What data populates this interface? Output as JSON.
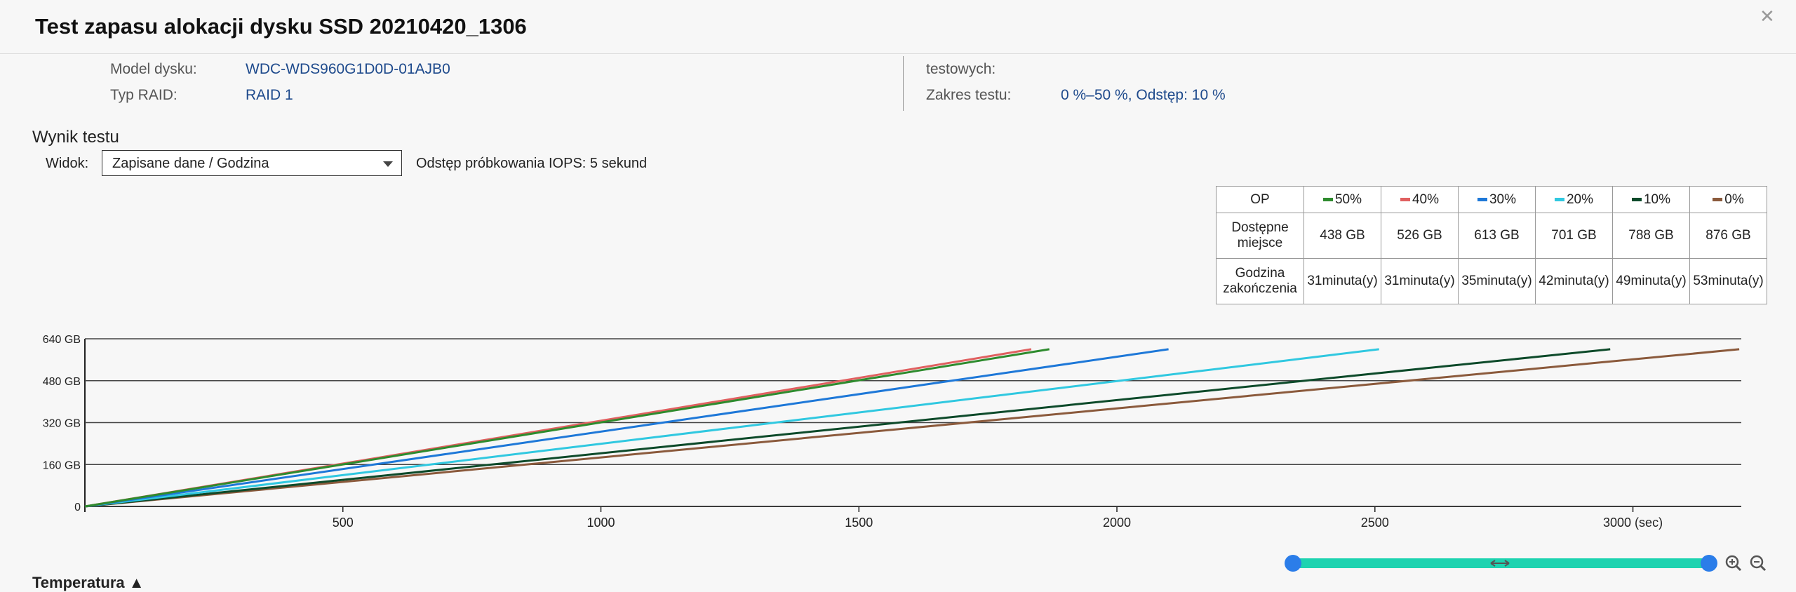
{
  "header": {
    "title": "Test zapasu alokacji dysku SSD 20210420_1306"
  },
  "info": {
    "left": [
      {
        "label": "Model dysku:",
        "value": "WDC-WDS960G1D0D-01AJB0"
      },
      {
        "label": "Typ RAID:",
        "value": "RAID 1"
      }
    ],
    "right": [
      {
        "label": "testowych:"
      },
      {
        "label": "Zakres testu:",
        "value": "0 %–50 %, Odstęp: 10 %"
      }
    ]
  },
  "result": {
    "title": "Wynik testu",
    "view_label": "Widok:",
    "view_value": "Zapisane dane / Godzina",
    "sampling": "Odstęp próbkowania IOPS: 5 sekund"
  },
  "summary_table": {
    "corner": "OP",
    "rows": [
      {
        "label": "Dostępne miejsce",
        "cells": [
          "438 GB",
          "526 GB",
          "613 GB",
          "701 GB",
          "788 GB",
          "876 GB"
        ]
      },
      {
        "label": "Godzina zakończenia",
        "cells": [
          "31minuta(y)",
          "31minuta(y)",
          "35minuta(y)",
          "42minuta(y)",
          "49minuta(y)",
          "53minuta(y)"
        ]
      }
    ]
  },
  "chart_data": {
    "type": "line",
    "xlim": [
      0,
      3210
    ],
    "ylim": [
      0,
      640
    ],
    "xticks": [
      500,
      1000,
      1500,
      2000,
      2500,
      {
        "value": 3000,
        "label": "3000 (sec)"
      }
    ],
    "yticks": [
      0,
      {
        "value": 160,
        "label": "160 GB"
      },
      {
        "value": 320,
        "label": "320 GB"
      },
      {
        "value": 480,
        "label": "480 GB"
      },
      {
        "value": 640,
        "label": "640 GB"
      }
    ],
    "grid": true,
    "series": [
      {
        "name": "50%",
        "color": "#2e8b2e",
        "x": [
          0,
          935,
          1869
        ],
        "values": [
          0,
          300,
          600
        ]
      },
      {
        "name": "40%",
        "color": "#e06060",
        "x": [
          0,
          917,
          1834
        ],
        "values": [
          0,
          300,
          600
        ]
      },
      {
        "name": "30%",
        "color": "#1e78d8",
        "x": [
          0,
          1050,
          2100
        ],
        "values": [
          0,
          300,
          600
        ]
      },
      {
        "name": "20%",
        "color": "#30c8e0",
        "x": [
          0,
          1254,
          2508
        ],
        "values": [
          0,
          300,
          600
        ]
      },
      {
        "name": "10%",
        "color": "#0d4a2a",
        "x": [
          0,
          1478,
          2956
        ],
        "values": [
          0,
          300,
          600
        ]
      },
      {
        "name": "0%",
        "color": "#8b5a3c",
        "x": [
          0,
          1603,
          3206
        ],
        "values": [
          0,
          300,
          600
        ]
      }
    ]
  },
  "footer": {
    "section": "Temperatura ▲"
  }
}
